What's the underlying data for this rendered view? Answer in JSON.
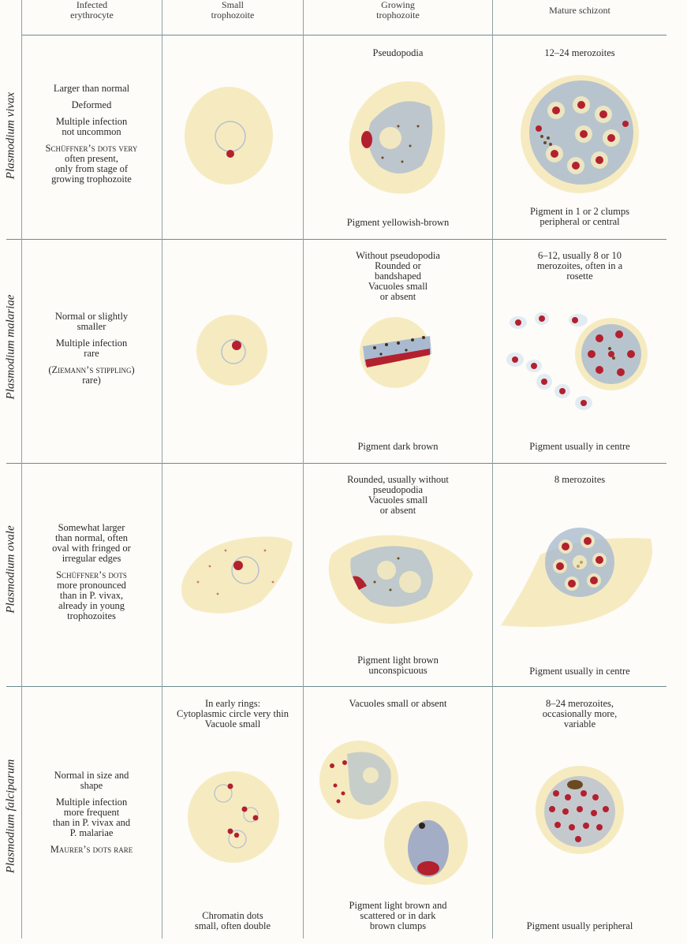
{
  "header": {
    "col1": [
      "Infected",
      "erythrocyte"
    ],
    "col2": [
      "Small",
      "trophozoite"
    ],
    "col3": [
      "Growing",
      "trophozoite"
    ],
    "col4": [
      "Mature schizont"
    ]
  },
  "vivax": {
    "name": "Plasmodium vivax",
    "desc": [
      [
        "Larger than normal"
      ],
      [
        "Deformed"
      ],
      [
        "Multiple infection",
        "not uncommon"
      ],
      [
        "Schüffner’s dots very",
        "often present,",
        "only from stage of",
        "growing trophozoite"
      ]
    ],
    "growing_top": [
      "Pseudopodia"
    ],
    "growing_bottom": [
      "Pigment yellowish-brown"
    ],
    "schizont_top": [
      "12–24 merozoites"
    ],
    "schizont_bottom": [
      "Pigment in 1 or 2 clumps",
      "peripheral or central"
    ]
  },
  "malariae": {
    "name": "Plasmodium malariae",
    "desc": [
      [
        "Normal or slightly",
        "smaller"
      ],
      [
        "Multiple infection",
        "rare"
      ],
      [
        "(Ziemann’s stippling)",
        "rare)"
      ]
    ],
    "growing_top": [
      "Without pseudopodia",
      "Rounded or",
      "bandshaped",
      "Vacuoles small",
      "or absent"
    ],
    "growing_bottom": [
      "Pigment dark brown"
    ],
    "schizont_top": [
      "6–12, usually 8 or 10",
      "merozoites, often in a",
      "rosette"
    ],
    "schizont_bottom": [
      "Pigment usually in centre"
    ]
  },
  "ovale": {
    "name": "Plasmodium ovale",
    "desc": [
      [
        "Somewhat larger",
        "than normal, often",
        "oval with fringed or",
        "irregular edges"
      ],
      [
        "Schüffner’s dots",
        "more pronounced",
        "than in P. vivax,",
        "already in young",
        "trophozoites"
      ]
    ],
    "growing_top": [
      "Rounded, usually without",
      "pseudopodia",
      "Vacuoles small",
      "or absent"
    ],
    "growing_bottom": [
      "Pigment light brown",
      "unconspicuous"
    ],
    "schizont_top": [
      "8 merozoites"
    ],
    "schizont_bottom": [
      "Pigment usually in centre"
    ]
  },
  "falciparum": {
    "name": "Plasmodium falciparum",
    "desc": [
      [
        "Normal in size and",
        "shape"
      ],
      [
        "Multiple infection",
        "more frequent",
        "than in P. vivax and",
        "P. malariae"
      ],
      [
        "Maurer’s dots rare"
      ]
    ],
    "small_top": [
      "In early rings:",
      "Cytoplasmic circle very thin",
      "Vacuole small"
    ],
    "small_bottom": [
      "Chromatin dots",
      "small, often double"
    ],
    "growing_top": [
      "Vacuoles small or absent"
    ],
    "growing_bottom": [
      "Pigment light brown and",
      "scattered or in dark",
      "brown clumps"
    ],
    "schizont_top": [
      "8–24 merozoites,",
      "occasionally more,",
      "variable"
    ],
    "schizont_bottom": [
      "Pigment usually peripheral"
    ]
  },
  "colors": {
    "cell": "#f6ebc0",
    "chromatin": "#b3202e",
    "cytoplasm": "#9fb1c9",
    "pigment": "#6b4a22",
    "rule": "#6f8a8e"
  }
}
